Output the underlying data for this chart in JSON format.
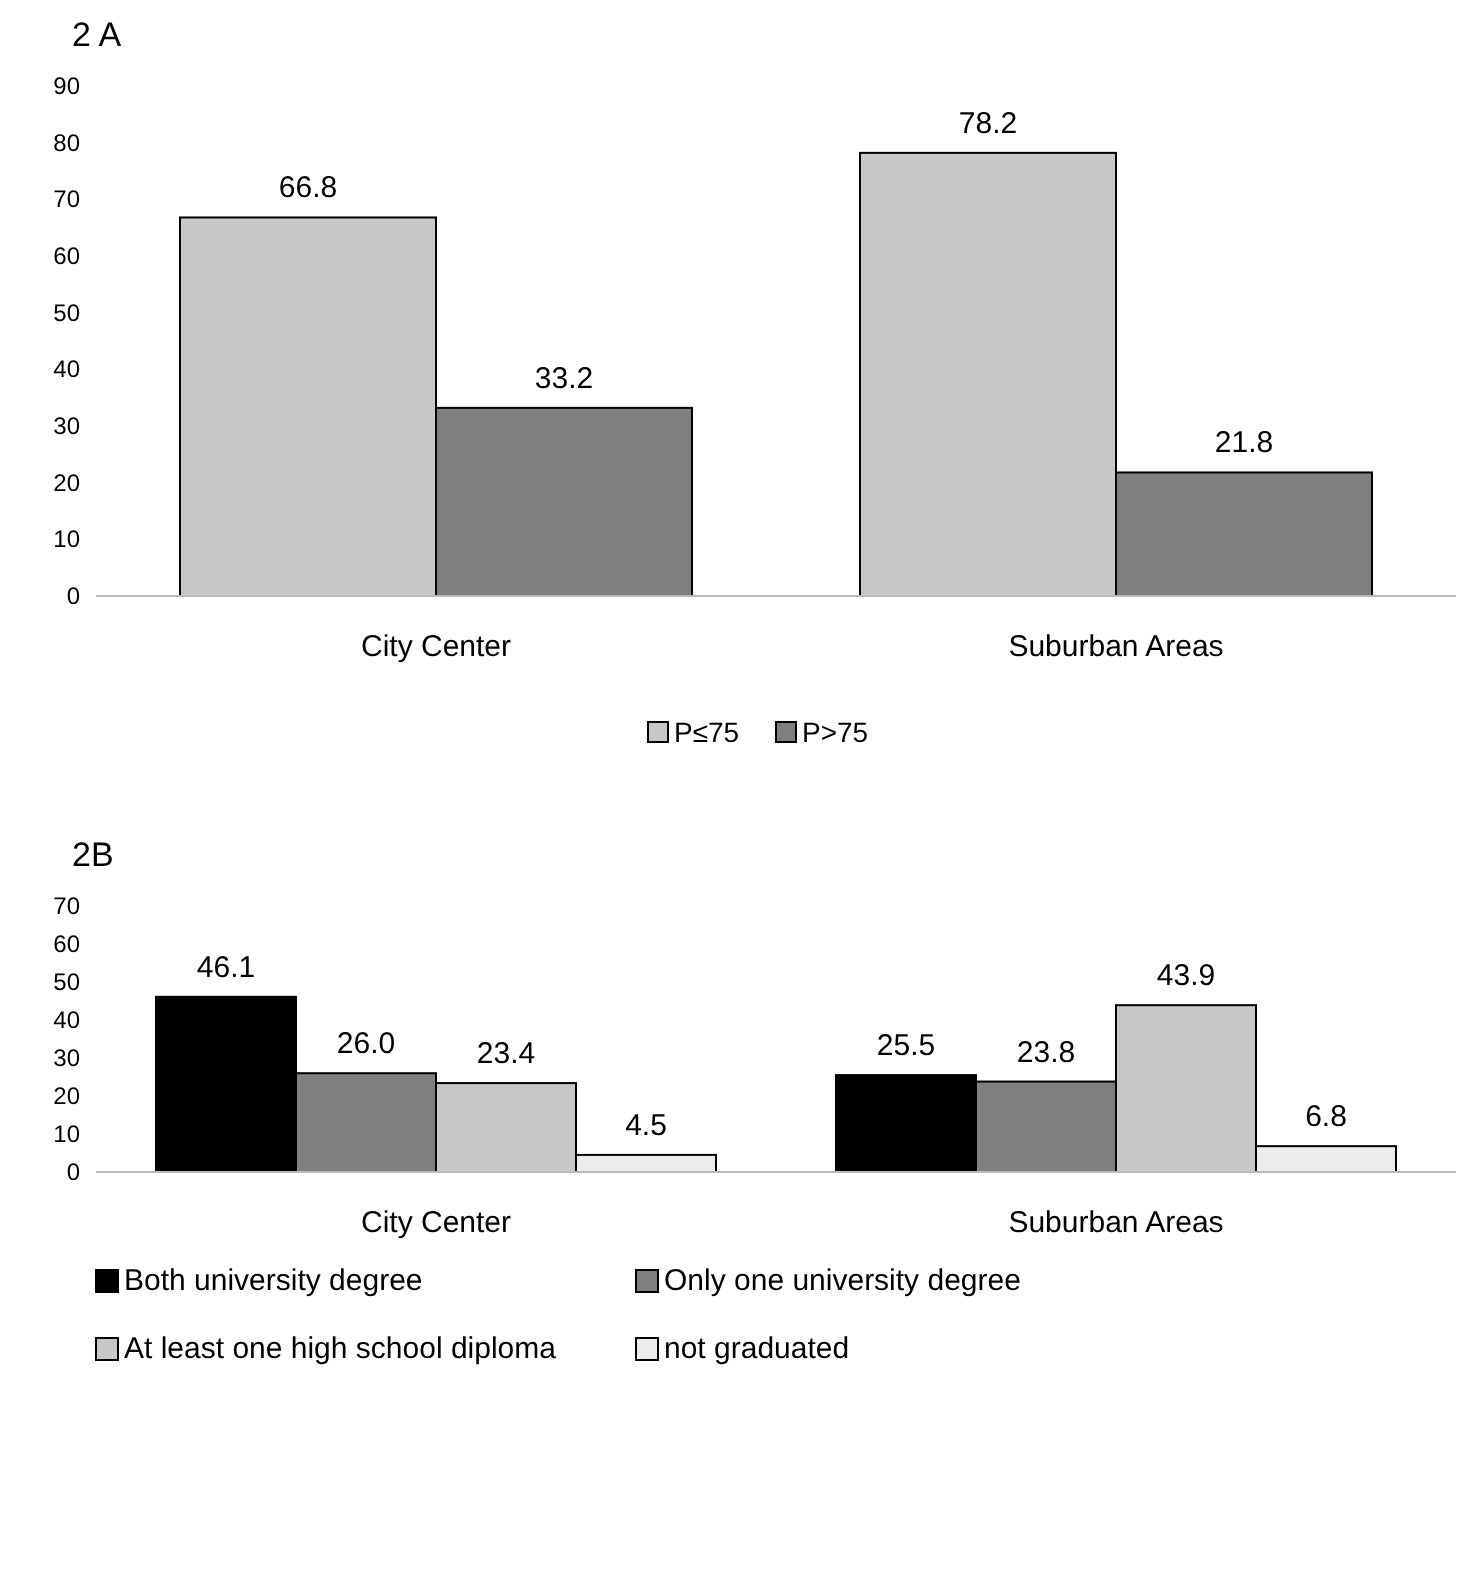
{
  "chart_data": [
    {
      "type": "bar",
      "title": "2 A",
      "categories": [
        "City Center",
        "Suburban Areas"
      ],
      "series": [
        {
          "name": "P≤75",
          "color": "#c8c8c8",
          "values": [
            66.8,
            78.2
          ],
          "value_labels": [
            "66.8",
            "78.2"
          ]
        },
        {
          "name": "P>75",
          "color": "#7f7f7f",
          "values": [
            33.2,
            21.8
          ],
          "value_labels": [
            "33.2",
            "21.8"
          ]
        }
      ],
      "ylim": [
        0,
        90
      ],
      "yticks": [
        0,
        10,
        20,
        30,
        40,
        50,
        60,
        70,
        80,
        90
      ],
      "grid": false,
      "legend": "bottom"
    },
    {
      "type": "bar",
      "title": "2B",
      "categories": [
        "City Center",
        "Suburban Areas"
      ],
      "series": [
        {
          "name": "Both university degree",
          "color": "#000000",
          "values": [
            46.1,
            25.5
          ],
          "value_labels": [
            "46.1",
            "25.5"
          ]
        },
        {
          "name": "Only one university degree",
          "color": "#7f7f7f",
          "values": [
            26.0,
            23.8
          ],
          "value_labels": [
            "26.0",
            "23.8"
          ]
        },
        {
          "name": "At least one high school diploma",
          "color": "#c8c8c8",
          "values": [
            23.4,
            43.9
          ],
          "value_labels": [
            "23.4",
            "43.9"
          ]
        },
        {
          "name": "not graduated",
          "color": "#ececec",
          "values": [
            4.5,
            6.8
          ],
          "value_labels": [
            "4.5",
            "6.8"
          ]
        }
      ],
      "ylim": [
        0,
        70
      ],
      "yticks": [
        0,
        10,
        20,
        30,
        40,
        50,
        60,
        70
      ],
      "grid": false,
      "legend": "bottom"
    }
  ]
}
